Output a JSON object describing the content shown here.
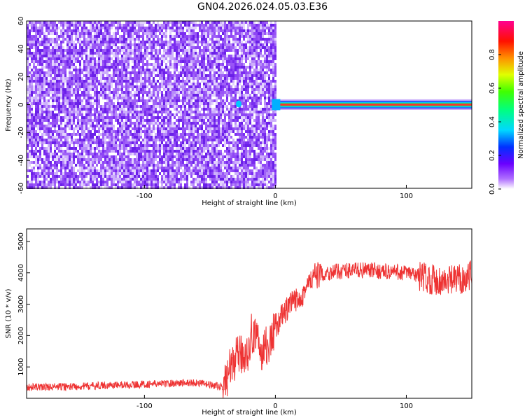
{
  "title": "GN04.2026.024.05.03.E36",
  "chart_data": [
    {
      "type": "heatmap",
      "xlabel": "Height of straight line (km)",
      "ylabel": "Frequency (Hz)",
      "xlim": [
        -190,
        150
      ],
      "ylim": [
        -60,
        60
      ],
      "xticks": [
        -100,
        0,
        100
      ],
      "yticks": [
        -60,
        -40,
        -20,
        0,
        20,
        40,
        60
      ],
      "colorbar": {
        "label": "Normalized spectral amplitude",
        "range": [
          0,
          1
        ],
        "ticks": [
          0.0,
          0.2,
          0.4,
          0.6,
          0.8
        ],
        "colormap": [
          "#ffffff",
          "#8a2be2",
          "#3a00ff",
          "#00e0ff",
          "#00ff40",
          "#ffff00",
          "#ff8000",
          "#ff0000",
          "#ff00a0"
        ]
      },
      "regions": [
        {
          "x_range": [
            -190,
            0
          ],
          "y_range": [
            -60,
            60
          ],
          "amplitude_approx": 0.1
        },
        {
          "x_range": [
            0,
            150
          ],
          "y_range": [
            -2,
            2
          ],
          "amplitude_approx": 0.9
        }
      ]
    },
    {
      "type": "line",
      "xlabel": "Height of straight line (km)",
      "ylabel": "SNR (10 * v/v)",
      "xlim": [
        -190,
        150
      ],
      "ylim": [
        0,
        5400
      ],
      "xticks": [
        -100,
        0,
        100
      ],
      "yticks": [
        1000,
        2000,
        3000,
        4000,
        5000
      ],
      "color": "#ee3333",
      "series": [
        {
          "x": [
            -190,
            -150,
            -100,
            -60,
            -40,
            -35,
            -30,
            -20,
            -15,
            -12,
            -8,
            -5,
            0,
            10,
            20,
            30,
            40,
            60,
            80,
            100,
            110,
            120,
            130,
            140,
            150
          ],
          "y": [
            350,
            380,
            450,
            500,
            350,
            900,
            1300,
            1500,
            2200,
            1400,
            1700,
            1600,
            2300,
            2900,
            3300,
            3900,
            4000,
            4100,
            4050,
            4000,
            3900,
            3800,
            3700,
            3800,
            3900
          ]
        }
      ]
    }
  ]
}
